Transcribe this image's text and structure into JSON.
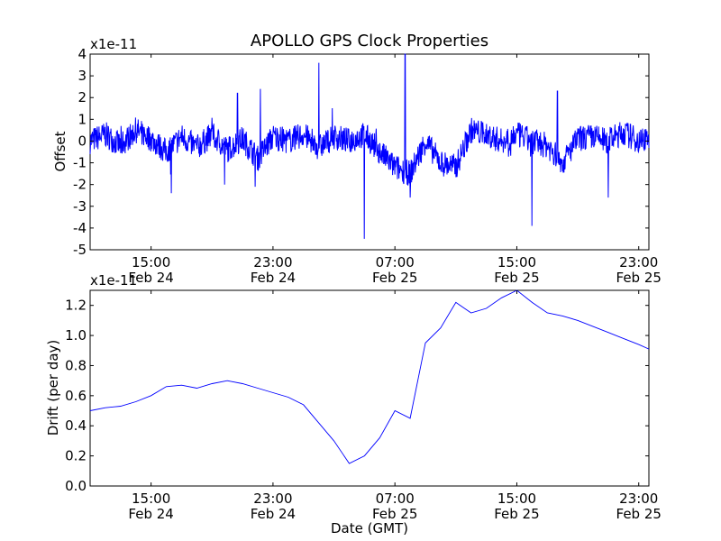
{
  "figure_title": "APOLLO GPS Clock Properties",
  "chart_data": [
    {
      "type": "line",
      "title": "APOLLO GPS Clock Properties",
      "ylabel": "Offset",
      "xlabel": "",
      "y_scale_label": "x1e-11",
      "ylim": [
        -5,
        4
      ],
      "yticks": [
        -5,
        -4,
        -3,
        -2,
        -1,
        0,
        1,
        2,
        3,
        4
      ],
      "ytick_labels": [
        "-5",
        "-4",
        "-3",
        "-2",
        "-1",
        "0",
        "1",
        "2",
        "3",
        "4"
      ],
      "xlim": [
        "Feb 24 11:00",
        "Feb 25 23:40"
      ],
      "xticks": [
        {
          "value": "Feb 24 15:00",
          "time": "15:00",
          "date": "Feb 24"
        },
        {
          "value": "Feb 24 23:00",
          "time": "23:00",
          "date": "Feb 24"
        },
        {
          "value": "Feb 25 07:00",
          "time": "07:00",
          "date": "Feb 25"
        },
        {
          "value": "Feb 25 15:00",
          "time": "15:00",
          "date": "Feb 25"
        },
        {
          "value": "Feb 25 23:00",
          "time": "23:00",
          "date": "Feb 25"
        }
      ],
      "grid": false,
      "series": [
        {
          "color": "#0000ff",
          "x": [
            "Feb 24 11:00",
            "Feb 24 12:00",
            "Feb 24 13:00",
            "Feb 24 14:00",
            "Feb 24 15:00",
            "Feb 24 16:00",
            "Feb 24 17:00",
            "Feb 24 18:00",
            "Feb 24 19:00",
            "Feb 24 20:00",
            "Feb 24 21:00",
            "Feb 24 22:00",
            "Feb 24 23:00",
            "Feb 25 00:00",
            "Feb 25 01:00",
            "Feb 25 02:00",
            "Feb 25 03:00",
            "Feb 25 04:00",
            "Feb 25 05:00",
            "Feb 25 06:00",
            "Feb 25 07:00",
            "Feb 25 08:00",
            "Feb 25 09:00",
            "Feb 25 10:00",
            "Feb 25 11:00",
            "Feb 25 12:00",
            "Feb 25 13:00",
            "Feb 25 14:00",
            "Feb 25 15:00",
            "Feb 25 16:00",
            "Feb 25 17:00",
            "Feb 25 18:00",
            "Feb 25 19:00",
            "Feb 25 20:00",
            "Feb 25 21:00",
            "Feb 25 22:00",
            "Feb 25 23:00",
            "Feb 25 23:40"
          ],
          "values": [
            0.0,
            0.3,
            -0.2,
            0.5,
            0.1,
            -0.5,
            0.2,
            -0.3,
            0.3,
            -0.4,
            0.1,
            -0.8,
            0.2,
            0.0,
            0.3,
            -0.3,
            0.2,
            0.0,
            0.3,
            -0.5,
            -1.2,
            -1.5,
            0.0,
            -1.0,
            -1.2,
            0.5,
            0.3,
            0.0,
            0.3,
            0.0,
            -0.2,
            -1.0,
            0.1,
            0.2,
            0.0,
            0.4,
            0.0,
            0.2
          ]
        }
      ],
      "spikes": [
        {
          "x": "Feb 24 16:20",
          "y": -2.4
        },
        {
          "x": "Feb 24 19:50",
          "y": -2.0
        },
        {
          "x": "Feb 24 20:40",
          "y": 2.2
        },
        {
          "x": "Feb 24 21:50",
          "y": -2.1
        },
        {
          "x": "Feb 24 22:10",
          "y": 2.4
        },
        {
          "x": "Feb 25 02:00",
          "y": 3.6
        },
        {
          "x": "Feb 25 05:00",
          "y": -4.5
        },
        {
          "x": "Feb 25 07:40",
          "y": 4.0
        },
        {
          "x": "Feb 25 08:00",
          "y": -2.6
        },
        {
          "x": "Feb 25 16:00",
          "y": -3.9
        },
        {
          "x": "Feb 25 17:40",
          "y": 2.3
        },
        {
          "x": "Feb 25 21:00",
          "y": -2.6
        }
      ]
    },
    {
      "type": "line",
      "title": "",
      "ylabel": "Drift (per day)",
      "xlabel": "Date (GMT)",
      "y_scale_label": "x1e-11",
      "ylim": [
        0.0,
        1.3
      ],
      "yticks": [
        0.0,
        0.2,
        0.4,
        0.6,
        0.8,
        1.0,
        1.2
      ],
      "ytick_labels": [
        "0.0",
        "0.2",
        "0.4",
        "0.6",
        "0.8",
        "1.0",
        "1.2"
      ],
      "xlim": [
        "Feb 24 11:00",
        "Feb 25 23:40"
      ],
      "xticks": [
        {
          "value": "Feb 24 15:00",
          "time": "15:00",
          "date": "Feb 24"
        },
        {
          "value": "Feb 24 23:00",
          "time": "23:00",
          "date": "Feb 24"
        },
        {
          "value": "Feb 25 07:00",
          "time": "07:00",
          "date": "Feb 25"
        },
        {
          "value": "Feb 25 15:00",
          "time": "15:00",
          "date": "Feb 25"
        },
        {
          "value": "Feb 25 23:00",
          "time": "23:00",
          "date": "Feb 25"
        }
      ],
      "grid": false,
      "series": [
        {
          "color": "#0000ff",
          "x": [
            "Feb 24 11:00",
            "Feb 24 12:00",
            "Feb 24 13:00",
            "Feb 24 14:00",
            "Feb 24 15:00",
            "Feb 24 16:00",
            "Feb 24 17:00",
            "Feb 24 18:00",
            "Feb 24 19:00",
            "Feb 24 20:00",
            "Feb 24 21:00",
            "Feb 24 22:00",
            "Feb 24 23:00",
            "Feb 25 00:00",
            "Feb 25 01:00",
            "Feb 25 02:00",
            "Feb 25 03:00",
            "Feb 25 04:00",
            "Feb 25 05:00",
            "Feb 25 06:00",
            "Feb 25 07:00",
            "Feb 25 08:00",
            "Feb 25 09:00",
            "Feb 25 10:00",
            "Feb 25 11:00",
            "Feb 25 12:00",
            "Feb 25 13:00",
            "Feb 25 14:00",
            "Feb 25 15:00",
            "Feb 25 16:00",
            "Feb 25 17:00",
            "Feb 25 18:00",
            "Feb 25 19:00",
            "Feb 25 20:00",
            "Feb 25 21:00",
            "Feb 25 22:00",
            "Feb 25 23:00",
            "Feb 25 23:40"
          ],
          "values": [
            0.5,
            0.52,
            0.53,
            0.56,
            0.6,
            0.66,
            0.67,
            0.65,
            0.68,
            0.7,
            0.68,
            0.65,
            0.62,
            0.59,
            0.54,
            0.42,
            0.3,
            0.15,
            0.2,
            0.32,
            0.5,
            0.45,
            0.95,
            1.05,
            1.22,
            1.15,
            1.18,
            1.25,
            1.3,
            1.22,
            1.15,
            1.13,
            1.1,
            1.06,
            1.02,
            0.98,
            0.94,
            0.91
          ]
        }
      ]
    }
  ]
}
